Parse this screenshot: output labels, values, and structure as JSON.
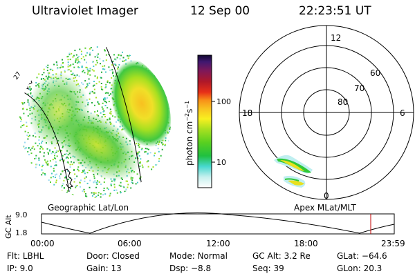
{
  "header": {
    "title": "Ultraviolet Imager",
    "date": "12 Sep 00",
    "time": "22:23:51 UT"
  },
  "colorbar": {
    "unit_label": "photon cm",
    "unit_sup1": "−2",
    "unit_mid": "s",
    "unit_sup2": "−1",
    "ticks": [
      "100",
      "10"
    ],
    "scale": "log"
  },
  "left_panel": {
    "caption": "Geographic Lat/Lon",
    "coast_label": "27"
  },
  "right_panel": {
    "caption": "Apex  MLat/MLT",
    "mlt_labels": {
      "top": "12",
      "left": "18",
      "right": "6",
      "bottom": "0"
    },
    "mlat_labels": [
      "60",
      "70",
      "80"
    ]
  },
  "altitude_plot": {
    "ylabel": "GC Alt",
    "ymax": "9.0",
    "ymin": "1.8",
    "xticks": [
      "00:00",
      "06:00",
      "12:00",
      "18:00",
      "23:59"
    ],
    "current_marker_hour": 22.4
  },
  "info": {
    "flt_label": "Flt:",
    "flt_value": "LBHL",
    "ip_label": "IP:",
    "ip_value": "9.0",
    "door_label": "Door:",
    "door_value": "Closed",
    "gain_label": "Gain:",
    "gain_value": "13",
    "mode_label": "Mode:",
    "mode_value": "Normal",
    "dsp_label": "Dsp:",
    "dsp_value": "−8.8",
    "gcalt_label": "GC Alt:",
    "gcalt_value": "3.2 Re",
    "seq_label": "Seq:",
    "seq_value": "39",
    "glat_label": "GLat:",
    "glat_value": "−64.6",
    "glon_label": "GLon:",
    "glon_value": "20.3"
  }
}
